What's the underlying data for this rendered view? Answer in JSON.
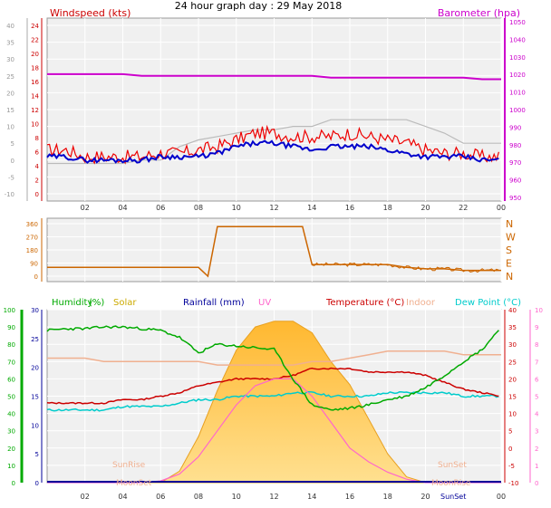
{
  "title": "24 hour graph day : 29 May 2018",
  "colors": {
    "wind_axis": "#cc0000",
    "baro_axis": "#cc00cc",
    "dir_axis": "#cc6600",
    "humidity": "#00aa00",
    "solar": "#ccaa00",
    "rain": "#000099",
    "uv": "#ff66cc",
    "temp": "#cc0000",
    "indoor": "#f0b090",
    "dew": "#00cccc"
  },
  "panels": {
    "wind": {
      "title_left": "Windspeed (kts)",
      "title_right": "Barometer (hpa)",
      "left_ticks_outer": [
        "40",
        "35",
        "30",
        "25",
        "20",
        "15",
        "10",
        "5",
        "0",
        "-5",
        "-10"
      ],
      "left_ticks_inner": [
        "24",
        "22",
        "20",
        "18",
        "16",
        "14",
        "12",
        "10",
        "8",
        "6",
        "4",
        "2",
        "0"
      ],
      "right_ticks": [
        "1050",
        "1040",
        "1030",
        "1020",
        "1010",
        "1000",
        "990",
        "980",
        "970",
        "960",
        "950"
      ],
      "x_ticks": [
        "02",
        "04",
        "06",
        "08",
        "10",
        "12",
        "14",
        "16",
        "18",
        "20",
        "22",
        "00"
      ]
    },
    "dir": {
      "left_ticks": [
        "360",
        "270",
        "180",
        "90",
        "0"
      ],
      "right_labels": [
        "N",
        "W",
        "S",
        "E",
        "N"
      ]
    },
    "temp": {
      "legend": {
        "humidity": "Humidity",
        "humidity_unit": "(%)",
        "solar": "Solar",
        "rain": "Rainfall (mm)",
        "uv": "UV",
        "temp": "Temperature (°C)",
        "indoor": "Indoor",
        "dew": "Dew Point (°C)"
      },
      "left_ticks_green": [
        "100",
        "90",
        "80",
        "70",
        "60",
        "50",
        "40",
        "30",
        "20",
        "10",
        "0"
      ],
      "left_ticks_blue": [
        "30",
        "25",
        "20",
        "15",
        "10",
        "5",
        "0"
      ],
      "right_ticks_temp": [
        "40",
        "35",
        "30",
        "25",
        "20",
        "15",
        "10",
        "5",
        "0",
        "-5",
        "-10"
      ],
      "right_ticks_uv": [
        "10",
        "9",
        "8",
        "7",
        "6",
        "5",
        "4",
        "3",
        "2",
        "1",
        "0"
      ],
      "x_ticks": [
        "02",
        "04",
        "06",
        "08",
        "10",
        "12",
        "14",
        "16",
        "18",
        "20",
        "",
        "00"
      ],
      "annotations": {
        "sunrise": "SunRise",
        "sunset": "SunSet",
        "moonset": "MoonSet",
        "moonrise": "MoonRise",
        "sunset_axis": "SunSet"
      }
    }
  },
  "chart_data": [
    {
      "type": "line",
      "title": "Windspeed (kts) / Barometer (hpa)",
      "x": [
        0,
        1,
        2,
        3,
        4,
        5,
        6,
        7,
        8,
        9,
        10,
        11,
        12,
        13,
        14,
        15,
        16,
        17,
        18,
        19,
        20,
        21,
        22,
        23,
        24
      ],
      "series": [
        {
          "name": "Barometer",
          "values": [
            1021,
            1021,
            1021,
            1021,
            1021,
            1020,
            1020,
            1020,
            1020,
            1020,
            1020,
            1020,
            1020,
            1020,
            1020,
            1019,
            1019,
            1019,
            1019,
            1019,
            1019,
            1019,
            1019,
            1018,
            1018
          ]
        },
        {
          "name": "Wind gust",
          "values": [
            3,
            3,
            1,
            1,
            1,
            1,
            2,
            2,
            3,
            4,
            6,
            8,
            8,
            7,
            7,
            7,
            8,
            7,
            6,
            5,
            3,
            2,
            2,
            1,
            1
          ]
        },
        {
          "name": "Wind average",
          "values": [
            1,
            1,
            0,
            0,
            0,
            0,
            1,
            1,
            1,
            2,
            4,
            5,
            5,
            4,
            3,
            4,
            4,
            4,
            3,
            2,
            1,
            1,
            1,
            0,
            0
          ]
        },
        {
          "name": "Grey trace",
          "values": [
            -1,
            -1,
            -1,
            -1,
            -1,
            0,
            0,
            4,
            6,
            7,
            8,
            9,
            9,
            10,
            10,
            12,
            12,
            12,
            12,
            12,
            10,
            8,
            5,
            5,
            5
          ]
        }
      ],
      "ylim_left": [
        -10,
        40
      ],
      "ylim_right": [
        950,
        1050
      ]
    },
    {
      "type": "line",
      "title": "Wind direction",
      "x": [
        0,
        1,
        2,
        3,
        4,
        5,
        6,
        7,
        8,
        8.5,
        9,
        10,
        11,
        12,
        13,
        13.5,
        14,
        15,
        16,
        17,
        18,
        19,
        20,
        21,
        22,
        23,
        24
      ],
      "series": [
        {
          "name": "Direction",
          "values": [
            60,
            60,
            60,
            60,
            60,
            60,
            60,
            60,
            60,
            0,
            340,
            340,
            340,
            340,
            340,
            340,
            80,
            80,
            80,
            80,
            80,
            60,
            50,
            50,
            40,
            40,
            40
          ]
        }
      ],
      "ylim": [
        0,
        360
      ]
    },
    {
      "type": "line",
      "title": "Humidity / Solar / Rainfall / UV / Temperature / Indoor / Dew Point",
      "x": [
        0,
        1,
        2,
        3,
        4,
        5,
        6,
        7,
        8,
        9,
        10,
        11,
        12,
        13,
        14,
        15,
        16,
        17,
        18,
        19,
        20,
        21,
        22,
        23,
        24
      ],
      "series": [
        {
          "name": "Humidity",
          "values": [
            88,
            89,
            89,
            90,
            90,
            89,
            88,
            84,
            75,
            80,
            79,
            78,
            77,
            60,
            45,
            42,
            43,
            45,
            48,
            50,
            55,
            62,
            70,
            77,
            90
          ]
        },
        {
          "name": "Solar",
          "values": [
            0,
            0,
            0,
            0,
            0,
            0,
            0,
            2,
            8,
            16,
            23,
            27,
            28,
            28,
            26,
            21,
            17,
            11,
            5,
            1,
            0,
            0,
            0,
            0,
            0
          ]
        },
        {
          "name": "UV",
          "values": [
            0,
            0,
            0,
            0,
            0,
            0,
            0.1,
            0.5,
            1.5,
            3,
            4.5,
            5.6,
            6,
            6,
            5,
            3.5,
            2,
            1.2,
            0.6,
            0.2,
            0,
            0,
            0,
            0,
            0
          ]
        },
        {
          "name": "Temperature",
          "values": [
            13,
            13,
            13,
            13,
            14,
            14,
            15,
            16,
            18,
            19,
            20,
            20,
            20,
            21,
            23,
            23,
            23,
            22,
            22,
            22,
            21,
            19,
            17,
            16,
            15
          ]
        },
        {
          "name": "Indoor",
          "values": [
            26,
            26,
            26,
            25,
            25,
            25,
            25,
            25,
            25,
            24,
            24,
            24,
            24,
            24,
            25,
            25,
            26,
            27,
            28,
            28,
            28,
            28,
            27,
            27,
            27
          ]
        },
        {
          "name": "Dew Point",
          "values": [
            11,
            11,
            11,
            11,
            12,
            12,
            12,
            13,
            14,
            14,
            15,
            15,
            15,
            16,
            16,
            15,
            15,
            15,
            16,
            16,
            16,
            16,
            15,
            15,
            15
          ]
        }
      ],
      "ylim_left": [
        0,
        100
      ],
      "ylim_right": [
        -10,
        40
      ]
    }
  ]
}
